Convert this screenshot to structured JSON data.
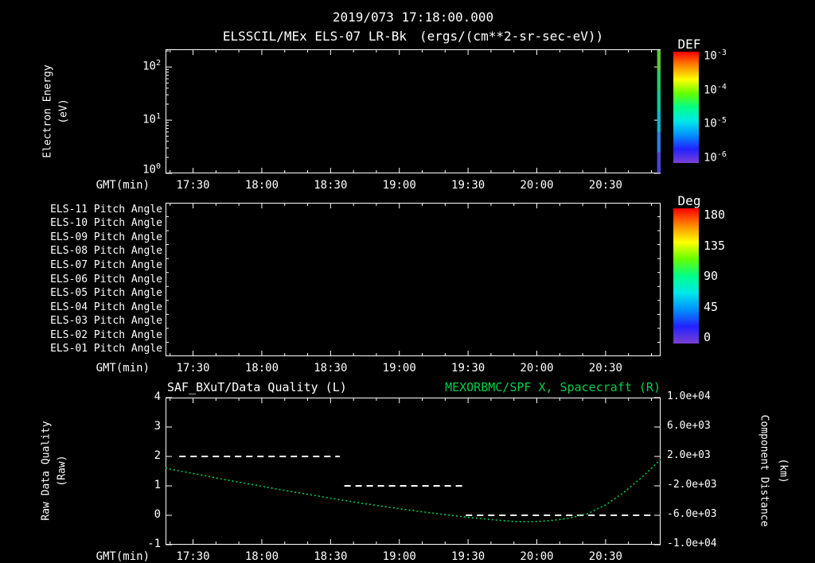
{
  "header": {
    "datetime": "2019/073 17:18:00.000",
    "title": "ELSSCIL/MEx ELS-07 LR-Bk",
    "units": "(ergs/(cm**2-sr-sec-eV))"
  },
  "colors": {
    "background": "#000000",
    "foreground": "#ffffff",
    "accent_green": "#00cc4c",
    "rainbow": [
      "#ff0000",
      "#ff8800",
      "#ffff00",
      "#66ff00",
      "#00ff88",
      "#00e8e8",
      "#0090ff",
      "#2222ff",
      "#7a3fd4"
    ]
  },
  "time_axis": {
    "label": "GMT(min)",
    "start_minutes": 1038,
    "end_minutes": 1254,
    "ticks": [
      {
        "minutes": 1050,
        "label": "17:30"
      },
      {
        "minutes": 1080,
        "label": "18:00"
      },
      {
        "minutes": 1110,
        "label": "18:30"
      },
      {
        "minutes": 1140,
        "label": "19:00"
      },
      {
        "minutes": 1170,
        "label": "19:30"
      },
      {
        "minutes": 1200,
        "label": "20:00"
      },
      {
        "minutes": 1230,
        "label": "20:30"
      }
    ]
  },
  "chart_data": [
    {
      "id": "electron-energy-spectrogram",
      "type": "heatmap",
      "ylabel": [
        "Electron Energy",
        "(eV)"
      ],
      "yscale": "log",
      "ylim": [
        1,
        215
      ],
      "ytick_exps": [
        0,
        1,
        2
      ],
      "colorbar": {
        "label": "DEF",
        "tick_exps": [
          -3,
          -4,
          -5,
          -6
        ]
      },
      "data_columns": [
        {
          "t_frac": 0.993,
          "width_frac": 0.007,
          "colors": [
            "#55cc33",
            "#22cc66",
            "#00cc99",
            "#00b8cc",
            "#2a7fe8",
            "#4a44dd"
          ]
        }
      ]
    },
    {
      "id": "pitch-angle-panel",
      "type": "heatmap",
      "rows": [
        "ELS-11 Pitch Angle",
        "ELS-10 Pitch Angle",
        "ELS-09 Pitch Angle",
        "ELS-08 Pitch Angle",
        "ELS-07 Pitch Angle",
        "ELS-06 Pitch Angle",
        "ELS-05 Pitch Angle",
        "ELS-04 Pitch Angle",
        "ELS-03 Pitch Angle",
        "ELS-02 Pitch Angle",
        "ELS-01 Pitch Angle"
      ],
      "colorbar": {
        "label": "Deg",
        "ticks": [
          180,
          135,
          90,
          45,
          0
        ]
      },
      "data_columns": []
    },
    {
      "id": "quality-and-spacecraft-position",
      "type": "line",
      "title_left": "SAF_BXuT/Data Quality (L)",
      "title_right": "MEXORBMC/SPF X, Spacecraft (R)",
      "ylabel_left": [
        "Raw Data Quality",
        "(Raw)"
      ],
      "ylabel_right": [
        "Component Distance",
        "(km)"
      ],
      "ylim_left": [
        -1,
        4
      ],
      "yticks_left": [
        4,
        3,
        2,
        1,
        0,
        -1
      ],
      "ylim_right": [
        -10000,
        10000
      ],
      "yticks_right": [
        "1.0e+04",
        "6.0e+03",
        "2.0e+03",
        "-2.0e+03",
        "-6.0e+03",
        "-1.0e+04"
      ],
      "series": [
        {
          "name": "SAF_BXuT Data Quality",
          "color": "#ffffff",
          "style": "dashed",
          "steps": [
            {
              "value": 2,
              "start_min": 1044,
              "end_min": 1114
            },
            {
              "value": 1,
              "start_min": 1116,
              "end_min": 1168
            },
            {
              "value": 0,
              "start_min": 1169,
              "end_min": 1250
            }
          ]
        },
        {
          "name": "MEXORBMC/SPF X Spacecraft",
          "color": "#00cc4c",
          "style": "dotted",
          "points": [
            [
              1038,
              1.6
            ],
            [
              1050,
              1.42
            ],
            [
              1062,
              1.24
            ],
            [
              1074,
              1.07
            ],
            [
              1086,
              0.9
            ],
            [
              1098,
              0.74
            ],
            [
              1110,
              0.58
            ],
            [
              1122,
              0.43
            ],
            [
              1134,
              0.29
            ],
            [
              1146,
              0.16
            ],
            [
              1158,
              0.04
            ],
            [
              1170,
              -0.07
            ],
            [
              1182,
              -0.16
            ],
            [
              1190,
              -0.21
            ],
            [
              1198,
              -0.22
            ],
            [
              1206,
              -0.18
            ],
            [
              1214,
              -0.1
            ],
            [
              1222,
              0.05
            ],
            [
              1230,
              0.35
            ],
            [
              1238,
              0.78
            ],
            [
              1246,
              1.3
            ],
            [
              1254,
              1.9
            ]
          ]
        }
      ]
    }
  ]
}
